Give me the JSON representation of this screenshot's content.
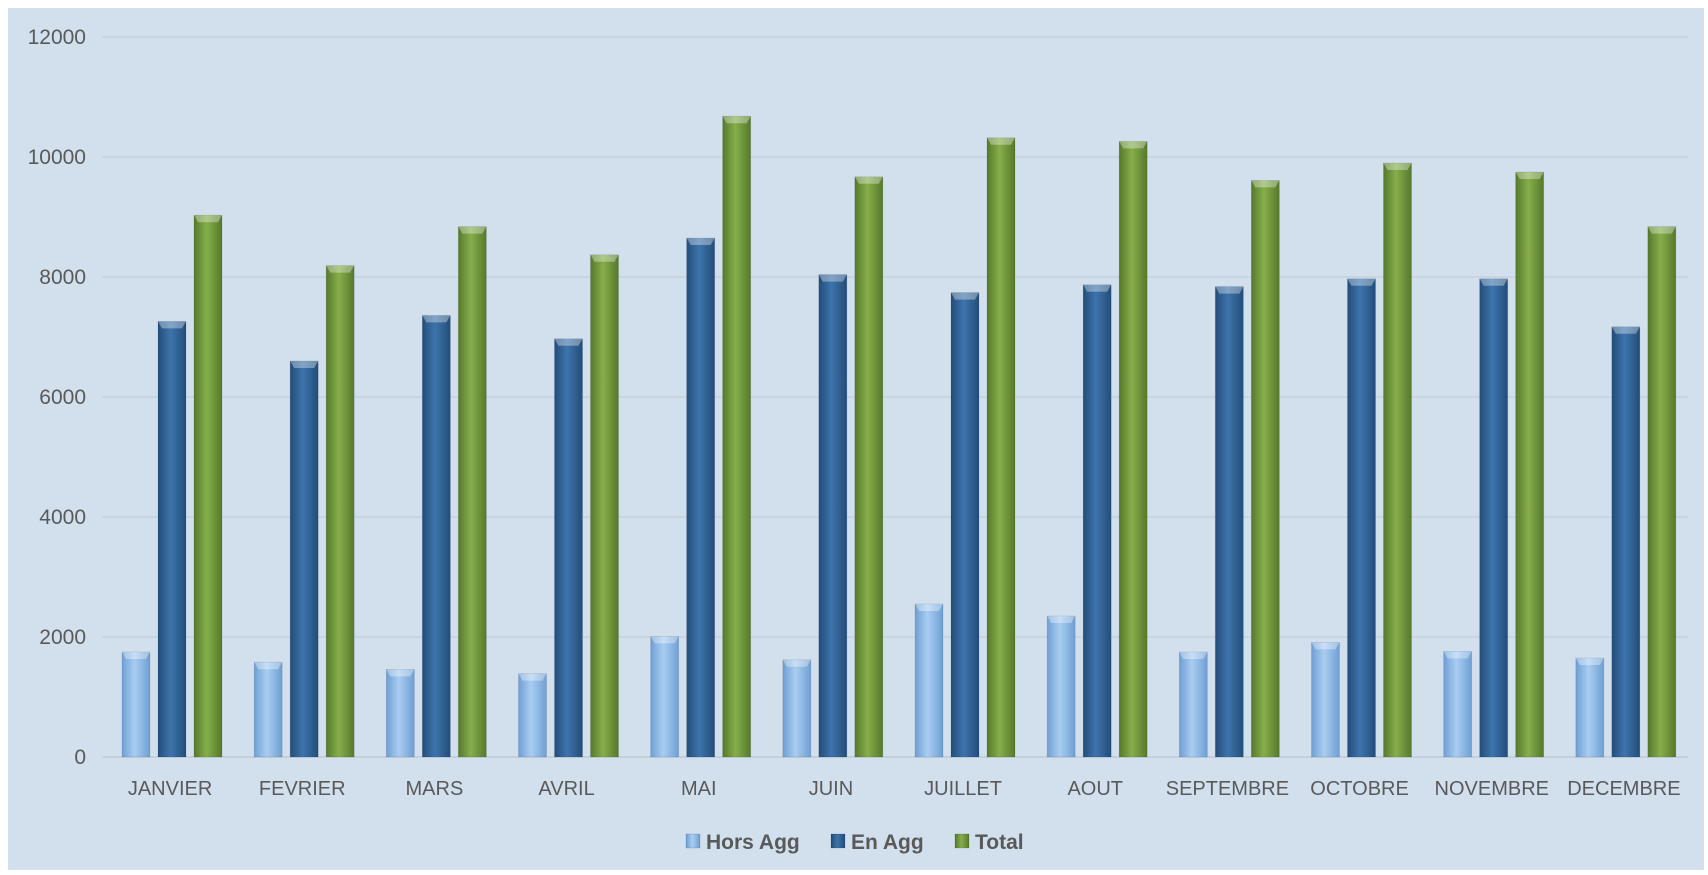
{
  "chart_data": {
    "type": "bar",
    "categories": [
      "JANVIER",
      "FEVRIER",
      "MARS",
      "AVRIL",
      "MAI",
      "JUIN",
      "JUILLET",
      "AOUT",
      "SEPTEMBRE",
      "OCTOBRE",
      "NOVEMBRE",
      "DECEMBRE"
    ],
    "series": [
      {
        "name": "Hors Agg",
        "color": "#8db8e4",
        "values": [
          1750,
          1580,
          1460,
          1390,
          2010,
          1620,
          2550,
          2350,
          1750,
          1910,
          1760,
          1650
        ]
      },
      {
        "name": "En Agg",
        "color": "#2e5f94",
        "values": [
          7260,
          6600,
          7360,
          6970,
          8650,
          8040,
          7740,
          7870,
          7840,
          7970,
          7970,
          7170
        ]
      },
      {
        "name": "Total",
        "color": "#70993a",
        "values": [
          9030,
          8190,
          8840,
          8370,
          10680,
          9670,
          10320,
          10260,
          9610,
          9900,
          9750,
          8840
        ]
      }
    ],
    "yticks": [
      0,
      2000,
      4000,
      6000,
      8000,
      10000,
      12000
    ],
    "ylim": [
      0,
      12000
    ],
    "grid": true,
    "legend": "bottom"
  }
}
